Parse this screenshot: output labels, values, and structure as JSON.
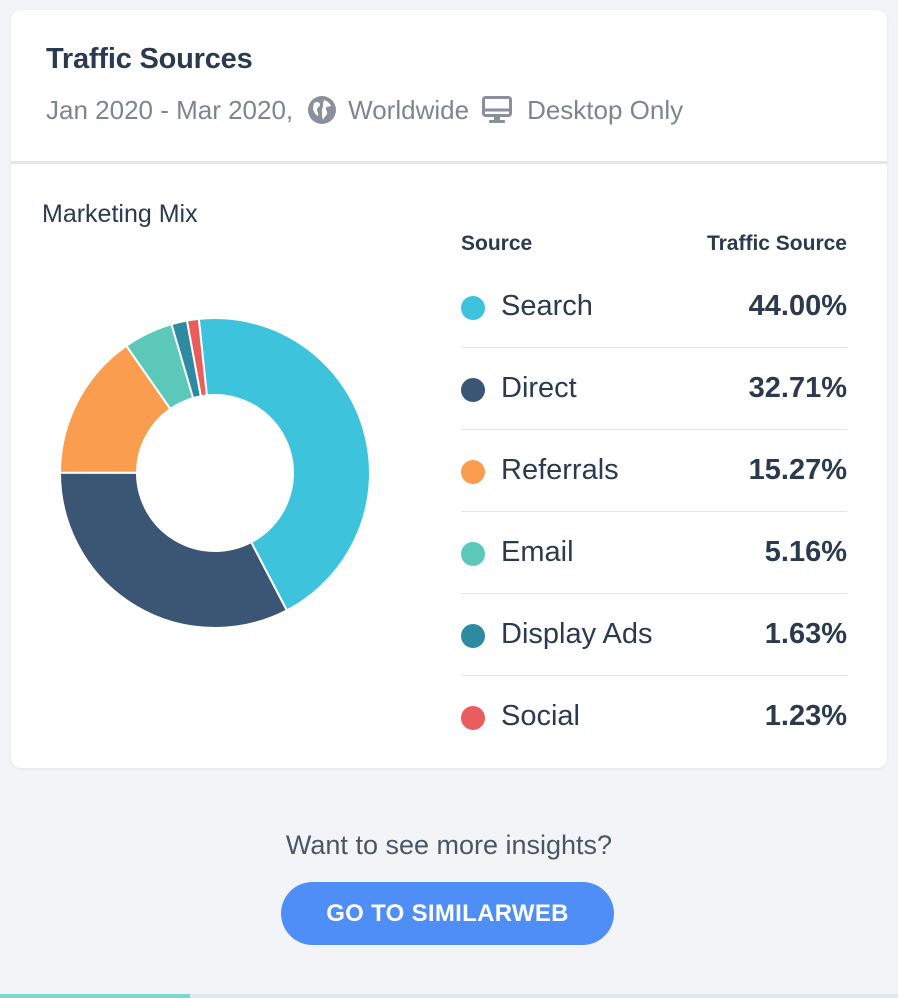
{
  "header": {
    "title": "Traffic Sources",
    "date_range": "Jan 2020 - Mar 2020,",
    "region_icon": "globe-icon",
    "region": "Worldwide",
    "device_icon": "desktop-icon",
    "device": "Desktop Only"
  },
  "chart_data": {
    "type": "pie",
    "title": "Marketing Mix",
    "donut": true,
    "legend_placement": "right",
    "columns": [
      "Source",
      "Traffic Source"
    ],
    "categories": [
      "Search",
      "Direct",
      "Referrals",
      "Email",
      "Display Ads",
      "Social"
    ],
    "values": [
      44.0,
      32.71,
      15.27,
      5.16,
      1.63,
      1.23
    ],
    "labels": [
      "44.00%",
      "32.71%",
      "15.27%",
      "5.16%",
      "1.63%",
      "1.23%"
    ],
    "colors": [
      "#3ec3dc",
      "#3a5674",
      "#fa9d4f",
      "#5bc8b9",
      "#2e8aa0",
      "#e95d5f"
    ]
  },
  "cta": {
    "prompt": "Want to see more insights?",
    "button_label": "GO TO SIMILARWEB",
    "button_color": "#4f8ef7"
  }
}
